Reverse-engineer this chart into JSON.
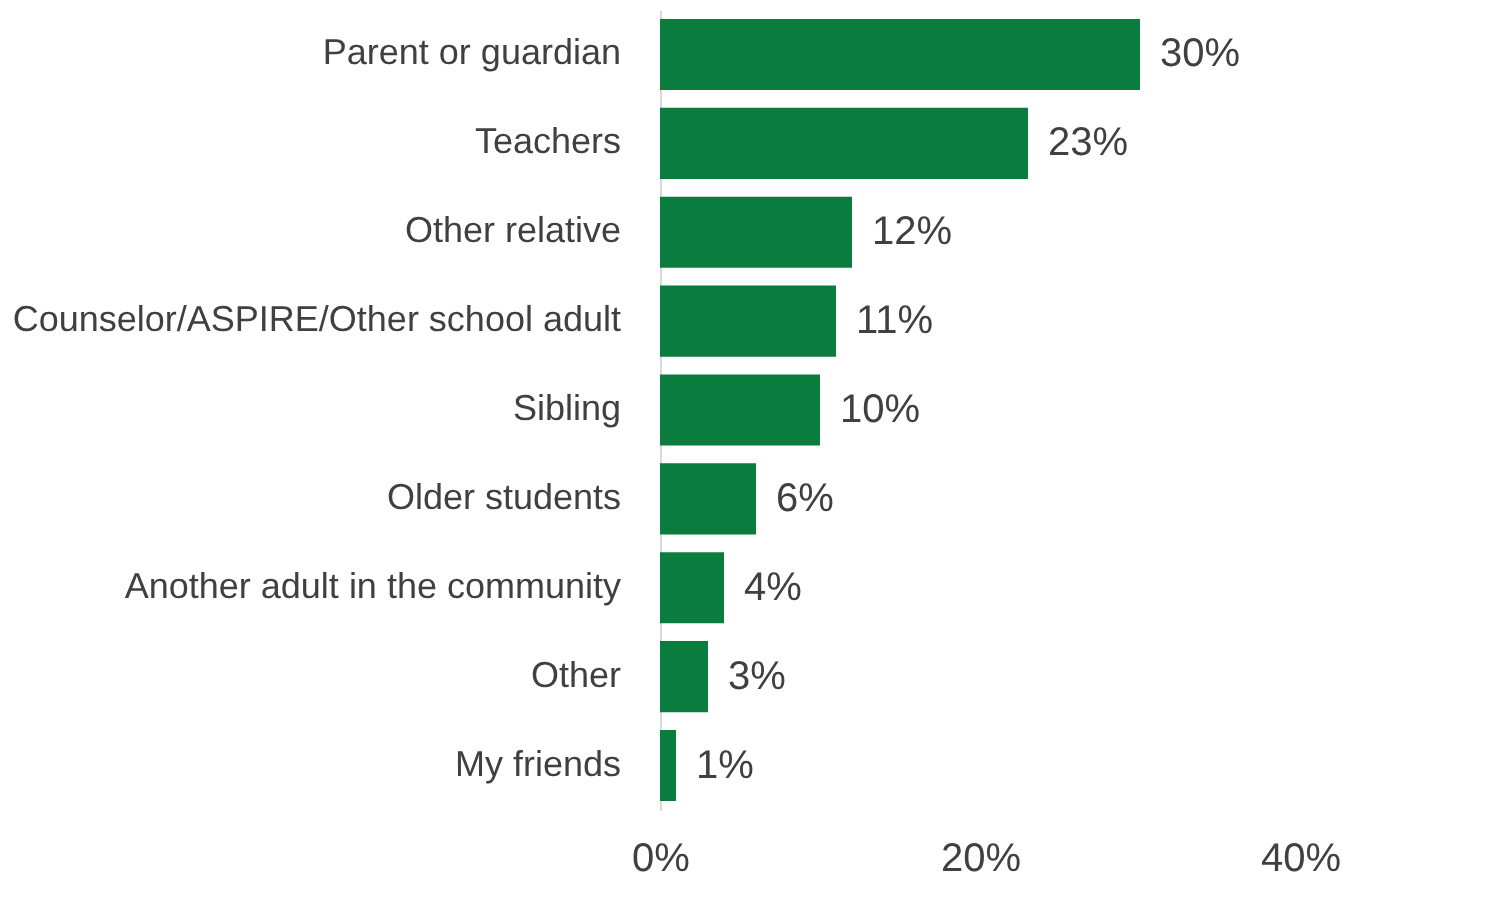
{
  "chart_data": {
    "type": "bar",
    "orientation": "horizontal",
    "categories": [
      "Parent or guardian",
      "Teachers",
      "Other relative",
      "Counselor/ASPIRE/Other school adult",
      "Sibling",
      "Older students",
      "Another adult in the community",
      "Other",
      "My friends"
    ],
    "values": [
      30,
      23,
      12,
      11,
      10,
      6,
      4,
      3,
      1
    ],
    "value_labels": [
      "30%",
      "23%",
      "12%",
      "11%",
      "10%",
      "6%",
      "4%",
      "3%",
      "1%"
    ],
    "color": "#0a7d3e",
    "xlim": [
      0,
      40
    ],
    "xticks": [
      {
        "value": 0,
        "label": "0%"
      },
      {
        "value": 20,
        "label": "20%"
      },
      {
        "value": 40,
        "label": "40%"
      }
    ],
    "grid": false
  }
}
